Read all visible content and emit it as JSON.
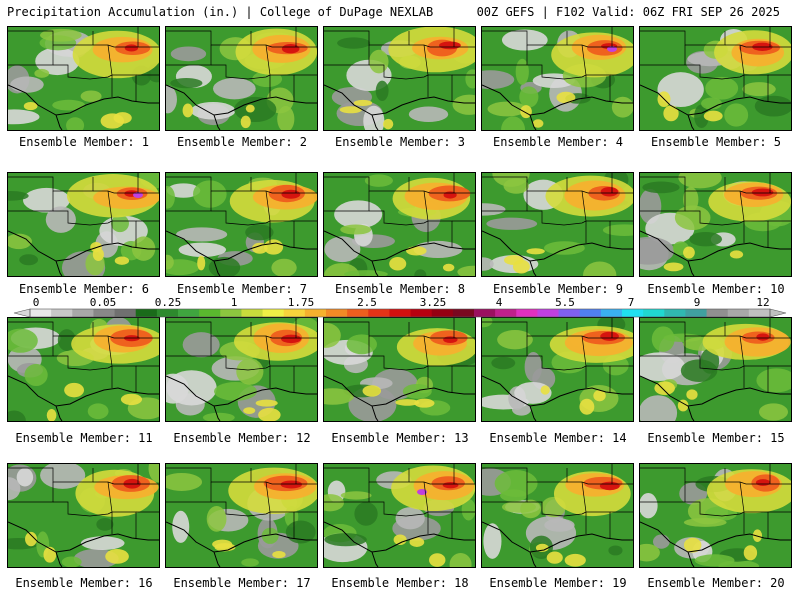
{
  "header": {
    "title": "Precipitation Accumulation (in.) | College of DuPage NEXLAB",
    "run_info": "00Z GEFS | F102 Valid: 06Z FRI SEP 26 2025"
  },
  "members": [
    {
      "label": "Ensemble Member: 1"
    },
    {
      "label": "Ensemble Member: 2"
    },
    {
      "label": "Ensemble Member: 3"
    },
    {
      "label": "Ensemble Member: 4"
    },
    {
      "label": "Ensemble Member: 5"
    },
    {
      "label": "Ensemble Member: 6"
    },
    {
      "label": "Ensemble Member: 7"
    },
    {
      "label": "Ensemble Member: 8"
    },
    {
      "label": "Ensemble Member: 9"
    },
    {
      "label": "Ensemble Member: 10"
    },
    {
      "label": "Ensemble Member: 11"
    },
    {
      "label": "Ensemble Member: 12"
    },
    {
      "label": "Ensemble Member: 13"
    },
    {
      "label": "Ensemble Member: 14"
    },
    {
      "label": "Ensemble Member: 15"
    },
    {
      "label": "Ensemble Member: 16"
    },
    {
      "label": "Ensemble Member: 17"
    },
    {
      "label": "Ensemble Member: 18"
    },
    {
      "label": "Ensemble Member: 19"
    },
    {
      "label": "Ensemble Member: 20"
    }
  ],
  "colorbar": {
    "tick_labels": [
      "0",
      "0.05",
      "0.25",
      "1",
      "1.75",
      "2.5",
      "3.25",
      "4",
      "5.5",
      "7",
      "9",
      "12"
    ],
    "colors": [
      "#e8e8e8",
      "#c8c8c8",
      "#a8a8a8",
      "#888888",
      "#707070",
      "#1a6b1a",
      "#2d8a2d",
      "#3fa63f",
      "#5ab82e",
      "#8cc63f",
      "#c8dc3c",
      "#f0f046",
      "#f7d43c",
      "#f5b12e",
      "#f28a26",
      "#ee5e1e",
      "#e43317",
      "#d4100f",
      "#b80010",
      "#960012",
      "#7a0820",
      "#9b1060",
      "#c0208c",
      "#e030c0",
      "#c040e0",
      "#8060f0",
      "#5080f0",
      "#3ab0f0",
      "#20e0f0",
      "#20d8d0",
      "#30b8b0",
      "#40a0a0",
      "#909090",
      "#a8a8a8",
      "#c0c0c0"
    ]
  }
}
